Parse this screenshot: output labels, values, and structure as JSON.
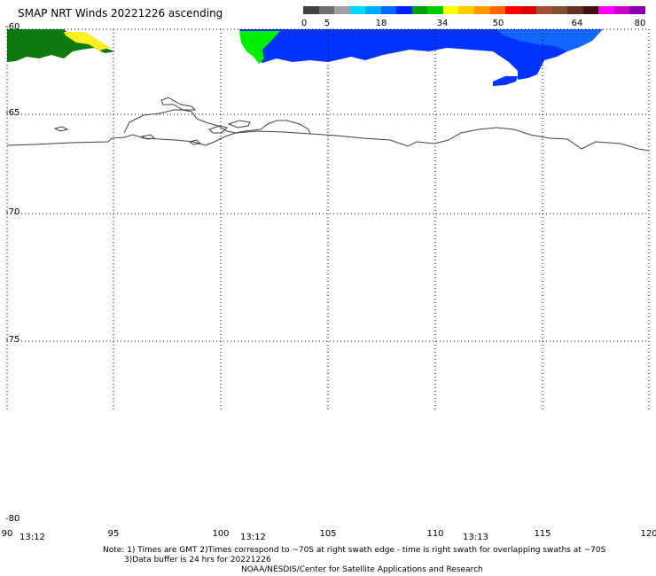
{
  "title": "SMAP NRT Winds 20221226 ascending",
  "colorbar": {
    "labels": [
      "0",
      "5",
      "18",
      "34",
      "50",
      "64",
      "80"
    ],
    "segments": [
      {
        "color": "#404040"
      },
      {
        "color": "#707070"
      },
      {
        "color": "#a0a0a0"
      },
      {
        "color": "#00d8ff"
      },
      {
        "color": "#00aaff"
      },
      {
        "color": "#0066ff"
      },
      {
        "color": "#0020ff"
      },
      {
        "color": "#00a000"
      },
      {
        "color": "#00cc00"
      },
      {
        "color": "#ffff00"
      },
      {
        "color": "#ffcc00"
      },
      {
        "color": "#ff9900"
      },
      {
        "color": "#ff6600"
      },
      {
        "color": "#ff0000"
      },
      {
        "color": "#dd0000"
      },
      {
        "color": "#a05030"
      },
      {
        "color": "#805030"
      },
      {
        "color": "#603020"
      },
      {
        "color": "#401010"
      },
      {
        "color": "#ff00ff"
      },
      {
        "color": "#cc00cc"
      },
      {
        "color": "#8800aa"
      }
    ]
  },
  "lat_labels": [
    "-60",
    "-65",
    "-70",
    "-75",
    "-80"
  ],
  "lon_labels": [
    "90",
    "95",
    "100",
    "105",
    "110",
    "115",
    "120"
  ],
  "times": [
    "13:12",
    "13:12",
    "13:13"
  ],
  "note_lines": [
    "Note: 1) Times are GMT 2)Times correspond to ~70S at right swath edge - time is right swath for overlapping swaths at ~70S",
    "3)Data buffer is 24 hrs for 20221226",
    "NOAA/NESDIS/Center for Satellite Applications and Research"
  ],
  "colors": {
    "wind_green_dark": "#0d7a0d",
    "wind_yellow": "#ffee22",
    "wind_green_bright": "#00ee00",
    "wind_blue": "#0033ff",
    "wind_blue_light": "#1e90ff",
    "coast": "#404040",
    "grid": "#000000"
  }
}
